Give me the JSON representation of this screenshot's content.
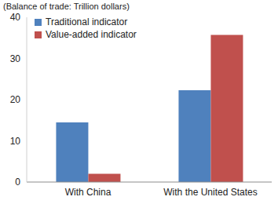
{
  "chart_data": {
    "type": "bar",
    "y_label": "(Balance of trade: Trillion dollars)",
    "categories": [
      "With China",
      "With the United States"
    ],
    "series": [
      {
        "name": "Traditional indicator",
        "color": "#4f81bd",
        "values": [
          14.5,
          22.3
        ]
      },
      {
        "name": "Value-added indicator",
        "color": "#c0504d",
        "values": [
          2.0,
          35.7
        ]
      }
    ],
    "ylim": [
      0,
      40
    ],
    "yticks": [
      0,
      10,
      20,
      30,
      40
    ],
    "grid": false,
    "legend": "upper left"
  }
}
